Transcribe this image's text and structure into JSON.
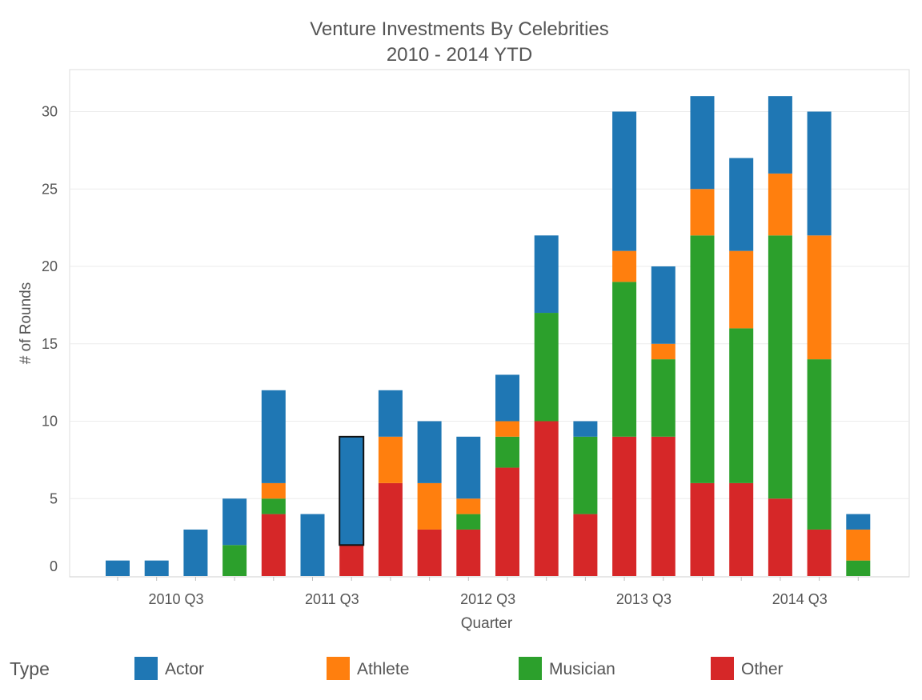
{
  "chart_data": {
    "type": "bar",
    "stacked": true,
    "title": "Venture Investments By Celebrities",
    "subtitle": "2010 - 2014 YTD",
    "xlabel": "Quarter",
    "ylabel": "# of Rounds",
    "ylim": [
      0,
      33
    ],
    "yticks": [
      0,
      5,
      10,
      15,
      20,
      25,
      30
    ],
    "grid": true,
    "legend_title": "Type",
    "legend_position": "bottom",
    "categories": [
      "2010 Q1",
      "2010 Q2",
      "2010 Q3",
      "2010 Q4",
      "2011 Q1",
      "2011 Q2",
      "2011 Q3",
      "2011 Q4",
      "2012 Q1",
      "2012 Q2",
      "2012 Q3",
      "2012 Q4",
      "2013 Q1",
      "2013 Q2",
      "2013 Q3",
      "2013 Q4",
      "2014 Q1",
      "2014 Q2",
      "2014 Q3",
      "2014 Q4"
    ],
    "xtick_labels": [
      {
        "category": "2010 Q3",
        "label": "2010 Q3"
      },
      {
        "category": "2011 Q3",
        "label": "2011 Q3"
      },
      {
        "category": "2012 Q3",
        "label": "2012 Q3"
      },
      {
        "category": "2013 Q3",
        "label": "2013 Q3"
      },
      {
        "category": "2014 Q3",
        "label": "2014 Q3"
      }
    ],
    "highlighted": {
      "category": "2011 Q3",
      "series": "Actor"
    },
    "series": [
      {
        "name": "Other",
        "color": "#d62728",
        "values": [
          0,
          0,
          0,
          0,
          4,
          0,
          2,
          6,
          3,
          3,
          7,
          10,
          4,
          9,
          9,
          6,
          6,
          5,
          3,
          0
        ]
      },
      {
        "name": "Musician",
        "color": "#2ca02c",
        "values": [
          0,
          0,
          0,
          2,
          1,
          0,
          0,
          0,
          0,
          1,
          2,
          7,
          5,
          10,
          5,
          16,
          10,
          17,
          11,
          1
        ]
      },
      {
        "name": "Athlete",
        "color": "#ff7f0e",
        "values": [
          0,
          0,
          0,
          0,
          1,
          0,
          0,
          3,
          3,
          1,
          1,
          0,
          0,
          2,
          1,
          3,
          5,
          4,
          8,
          2
        ]
      },
      {
        "name": "Actor",
        "color": "#1f77b4",
        "values": [
          1,
          1,
          3,
          3,
          6,
          4,
          7,
          3,
          4,
          4,
          3,
          5,
          1,
          9,
          5,
          6,
          6,
          5,
          8,
          1
        ]
      }
    ],
    "legend_order": [
      "Actor",
      "Athlete",
      "Musician",
      "Other"
    ]
  }
}
